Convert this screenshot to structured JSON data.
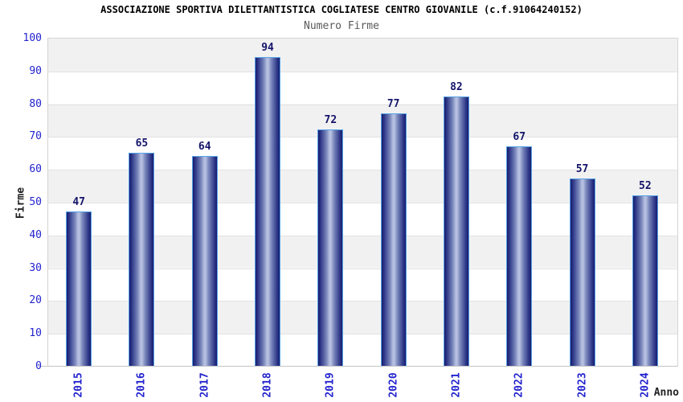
{
  "chart_data": {
    "type": "bar",
    "title": "ASSOCIAZIONE SPORTIVA DILETTANTISTICA COGLIATESE CENTRO GIOVANILE (c.f.91064240152)",
    "subtitle": "Numero Firme",
    "xlabel": "Anno",
    "ylabel": "Firme",
    "categories": [
      "2015",
      "2016",
      "2017",
      "2018",
      "2019",
      "2020",
      "2021",
      "2022",
      "2023",
      "2024"
    ],
    "values": [
      47,
      65,
      64,
      94,
      72,
      77,
      82,
      67,
      57,
      52
    ],
    "ylim": [
      0,
      100
    ],
    "ytick_step": 10,
    "grid": "horizontal-alternating-bands",
    "legend_position": "none",
    "colors": {
      "title": "#000000",
      "subtitle": "#595959",
      "tick_label": "#2323cf",
      "value_label": "#15156b",
      "axis_title": "#222222",
      "bar_edge": "#181c6e",
      "bar_highlight": "#b6bfe0",
      "bar_border": "#55a1e6",
      "band_gray": "#f1f1f1",
      "band_white": "#ffffff",
      "grid_line": "#e2e2e2",
      "axis_line": "#c4c4c4"
    }
  }
}
